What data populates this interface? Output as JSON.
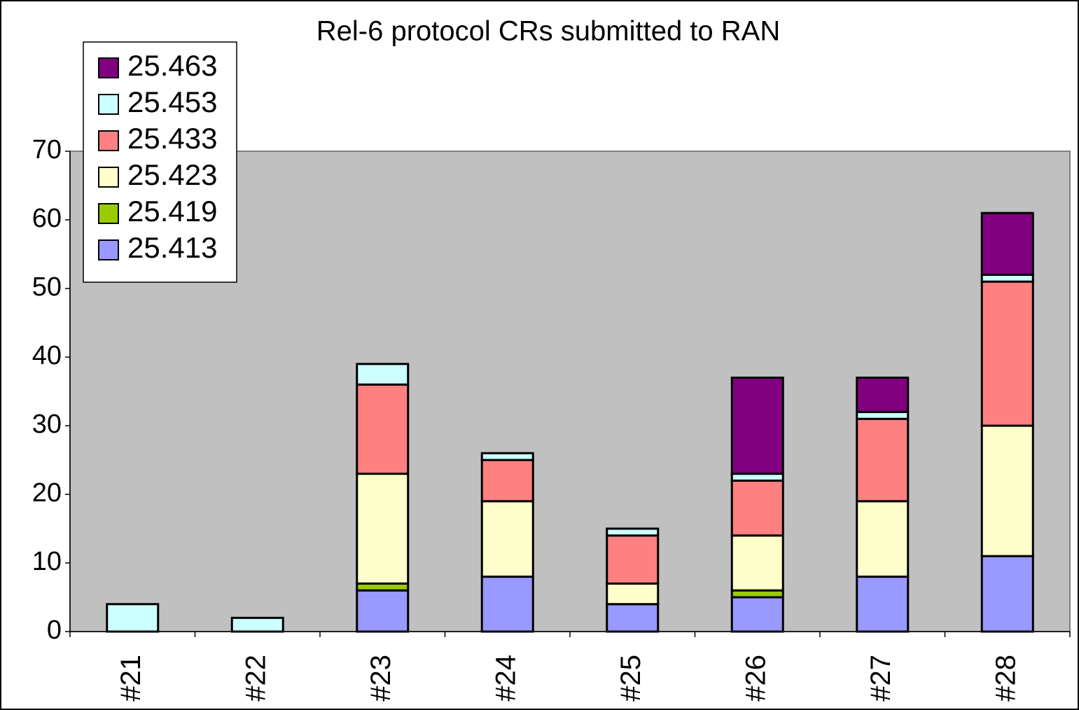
{
  "chart_data": {
    "type": "stacked_bar",
    "title": "Rel-6 protocol CRs submitted to RAN",
    "categories": [
      "#21",
      "#22",
      "#23",
      "#24",
      "#25",
      "#26",
      "#27",
      "#28"
    ],
    "series": [
      {
        "name": "25.413",
        "color": "#9999ff",
        "values": [
          0,
          0,
          6,
          8,
          4,
          5,
          8,
          11
        ]
      },
      {
        "name": "25.419",
        "color": "#99cc00",
        "values": [
          0,
          0,
          1,
          0,
          0,
          1,
          0,
          0
        ]
      },
      {
        "name": "25.423",
        "color": "#ffffcc",
        "values": [
          0,
          0,
          16,
          11,
          3,
          8,
          11,
          19
        ]
      },
      {
        "name": "25.433",
        "color": "#ff8080",
        "values": [
          0,
          0,
          13,
          6,
          7,
          8,
          12,
          21
        ]
      },
      {
        "name": "25.453",
        "color": "#ccffff",
        "values": [
          4,
          2,
          3,
          1,
          1,
          1,
          1,
          1
        ]
      },
      {
        "name": "25.463",
        "color": "#800080",
        "values": [
          0,
          0,
          0,
          0,
          0,
          14,
          5,
          9
        ]
      }
    ],
    "ylim": [
      0,
      70
    ],
    "yticks": [
      0,
      10,
      20,
      30,
      40,
      50,
      60,
      70
    ],
    "plot_background": "#c0c0c0",
    "legend": "upper-left"
  }
}
